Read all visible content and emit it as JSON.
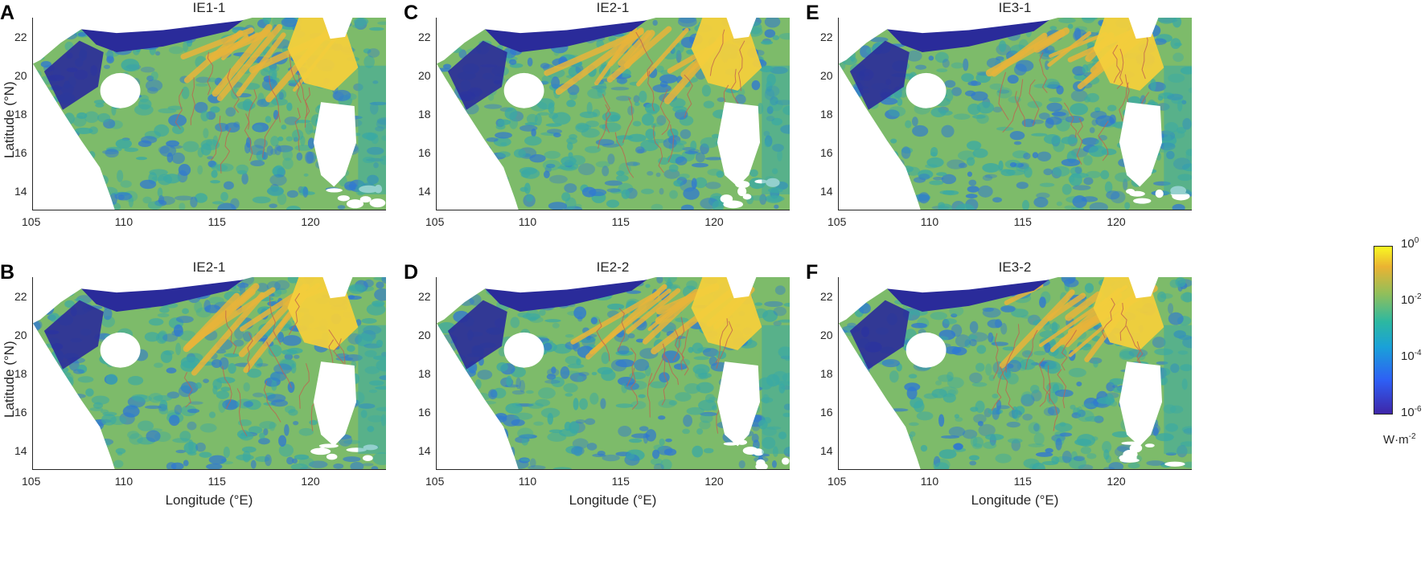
{
  "chart_data": [
    {
      "panel_label": "A",
      "title": "IE1-1",
      "type": "heatmap",
      "xlim": [
        105,
        124
      ],
      "ylim": [
        13,
        23
      ],
      "xticks": [
        "105",
        "110",
        "115",
        "120"
      ],
      "yticks": [
        "14",
        "16",
        "18",
        "20",
        "22"
      ],
      "ylabel": "Latitude (°N)",
      "xlabel": ""
    },
    {
      "panel_label": "B",
      "title": "IE2-1",
      "type": "heatmap",
      "xlim": [
        105,
        124
      ],
      "ylim": [
        13,
        23
      ],
      "xticks": [
        "105",
        "110",
        "115",
        "120"
      ],
      "yticks": [
        "14",
        "16",
        "18",
        "20",
        "22"
      ],
      "ylabel": "Latitude (°N)",
      "xlabel": "Longitude (°E)"
    },
    {
      "panel_label": "C",
      "title": "IE2-1",
      "type": "heatmap",
      "xlim": [
        105,
        124
      ],
      "ylim": [
        13,
        23
      ],
      "xticks": [
        "105",
        "110",
        "115",
        "120"
      ],
      "yticks": [
        "14",
        "16",
        "18",
        "20",
        "22"
      ],
      "ylabel": "",
      "xlabel": ""
    },
    {
      "panel_label": "D",
      "title": "IE2-2",
      "type": "heatmap",
      "xlim": [
        105,
        124
      ],
      "ylim": [
        13,
        23
      ],
      "xticks": [
        "105",
        "110",
        "115",
        "120"
      ],
      "yticks": [
        "14",
        "16",
        "18",
        "20",
        "22"
      ],
      "ylabel": "",
      "xlabel": "Longitude (°E)"
    },
    {
      "panel_label": "E",
      "title": "IE3-1",
      "type": "heatmap",
      "xlim": [
        105,
        124
      ],
      "ylim": [
        13,
        23
      ],
      "xticks": [
        "105",
        "110",
        "115",
        "120"
      ],
      "yticks": [
        "14",
        "16",
        "18",
        "20",
        "22"
      ],
      "ylabel": "",
      "xlabel": ""
    },
    {
      "panel_label": "F",
      "title": "IE3-2",
      "type": "heatmap",
      "xlim": [
        105,
        124
      ],
      "ylim": [
        13,
        23
      ],
      "xticks": [
        "105",
        "110",
        "115",
        "120"
      ],
      "yticks": [
        "14",
        "16",
        "18",
        "20",
        "22"
      ],
      "ylabel": "",
      "xlabel": "Longitude (°E)"
    }
  ],
  "colorbar": {
    "scale": "log",
    "range": [
      1e-06,
      1
    ],
    "ticks": [
      {
        "base": "10",
        "exp": "0"
      },
      {
        "base": "10",
        "exp": "-2"
      },
      {
        "base": "10",
        "exp": "-4"
      },
      {
        "base": "10",
        "exp": "-6"
      }
    ],
    "unit_text": "W·m",
    "unit_exp": "-2",
    "colors": [
      "#3e26a8",
      "#2e5ff5",
      "#1aa1d8",
      "#2cb8a1",
      "#92bf5a",
      "#eab332",
      "#f9f821"
    ]
  },
  "map_colors": {
    "land": "#ffffff",
    "coast_deep_blue": "#2a2b9a",
    "ocean_green": "#7dbb6a",
    "ocean_teal": "#3aa9a4",
    "ocean_blue": "#2f78d2",
    "hotspot_orange": "#e8b43a",
    "hotspot_yellow": "#f3cf3c",
    "contour": "#c0604f"
  }
}
